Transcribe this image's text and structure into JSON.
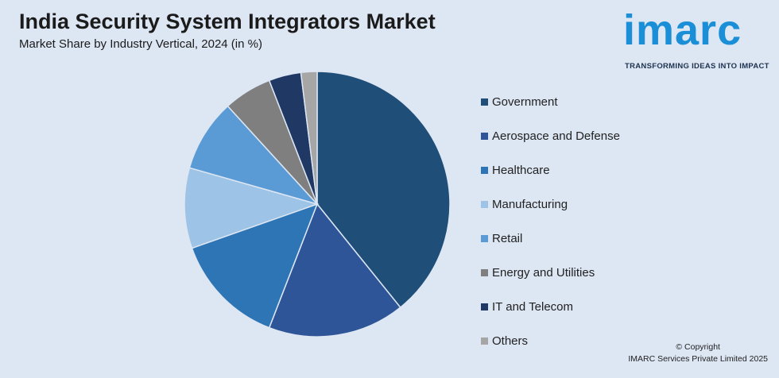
{
  "header": {
    "title": "India Security System Integrators Market",
    "subtitle": "Market Share by Industry Vertical, 2024 (in %)"
  },
  "logo": {
    "word": "imarc",
    "tagline": "TRANSFORMING IDEAS INTO IMPACT",
    "color": "#1a8fd8"
  },
  "chart_data": {
    "type": "pie",
    "legend_position": "right",
    "start_angle_deg": 0,
    "direction": "clockwise",
    "slices": [
      {
        "label": "Government",
        "value": 40,
        "color": "#1f4e79"
      },
      {
        "label": "Aerospace and Defense",
        "value": 17,
        "color": "#2e5597"
      },
      {
        "label": "Healthcare",
        "value": 14,
        "color": "#2e75b6"
      },
      {
        "label": "Manufacturing",
        "value": 10,
        "color": "#9dc3e6"
      },
      {
        "label": "Retail",
        "value": 9,
        "color": "#5b9bd5"
      },
      {
        "label": "Energy and Utilities",
        "value": 6,
        "color": "#7f7f7f"
      },
      {
        "label": "IT and Telecom",
        "value": 4,
        "color": "#203864"
      },
      {
        "label": "Others",
        "value": 2,
        "color": "#a6a6a6"
      }
    ]
  },
  "footer": {
    "copyright_line1": "© Copyright",
    "copyright_line2": "IMARC Services Private Limited 2025"
  }
}
